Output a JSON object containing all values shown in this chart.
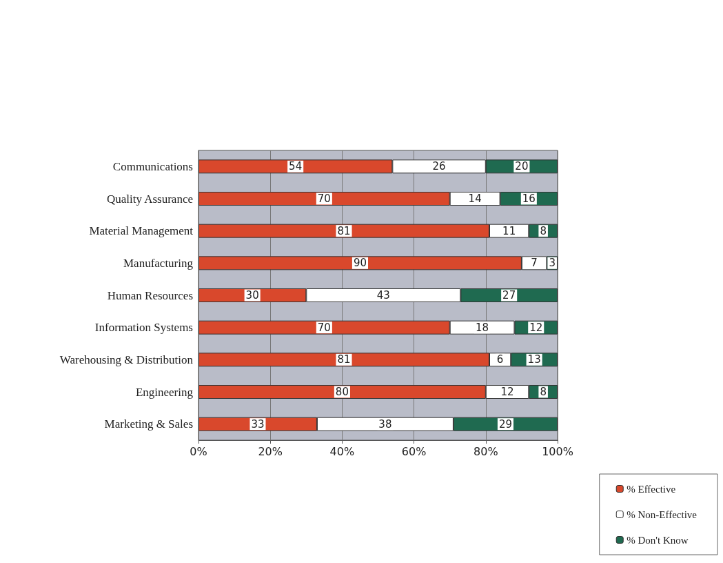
{
  "chart_data": {
    "type": "bar",
    "orientation": "horizontal",
    "stacked": true,
    "categories": [
      "Communications",
      "Quality Assurance",
      "Material Management",
      "Manufacturing",
      "Human Resources",
      "Information Systems",
      "Warehousing & Distribution",
      "Engineering",
      "Marketing & Sales"
    ],
    "series": [
      {
        "name": "% Effective",
        "color": "#d9482c",
        "values": [
          54,
          70,
          81,
          90,
          30,
          70,
          81,
          80,
          33
        ]
      },
      {
        "name": "% Non-Effective",
        "color": "#ffffff",
        "values": [
          26,
          14,
          11,
          7,
          43,
          18,
          6,
          12,
          38
        ]
      },
      {
        "name": "% Don't Know",
        "color": "#1f6a50",
        "values": [
          20,
          16,
          8,
          3,
          27,
          12,
          13,
          8,
          29
        ]
      }
    ],
    "xlim": [
      0,
      100
    ],
    "xticks": [
      {
        "value": 0,
        "label": "0%"
      },
      {
        "value": 20,
        "label": "20%"
      },
      {
        "value": 40,
        "label": "40%"
      },
      {
        "value": 60,
        "label": "60%"
      },
      {
        "value": 80,
        "label": "80%"
      },
      {
        "value": 100,
        "label": "100%"
      }
    ],
    "grid": "x",
    "legend": "bottom right",
    "data_labels": true
  }
}
